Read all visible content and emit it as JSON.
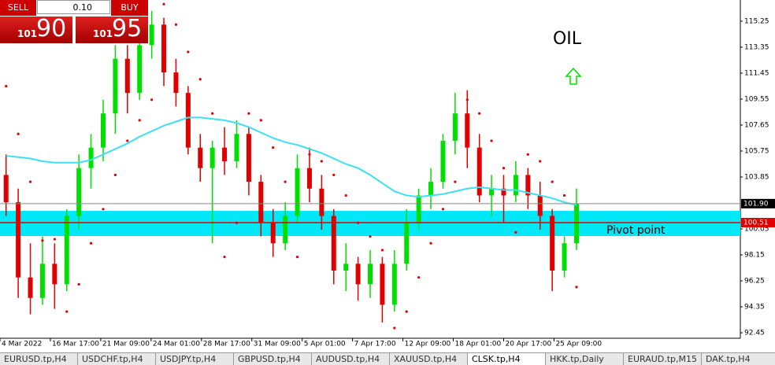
{
  "trade_panel": {
    "sell": "SELL",
    "buy": "BUY",
    "lot": "0.10",
    "bid_small": "101",
    "bid_big": "90",
    "ask_small": "101",
    "ask_big": "95"
  },
  "chart_data": {
    "type": "candlestick",
    "annotations": {
      "symbol": "OIL",
      "pivot": "Pivot point"
    },
    "x": [
      0.5,
      1.5,
      2.5,
      3.5,
      4.5,
      5.5,
      6.5,
      7.5,
      8.5,
      9.5,
      10.5,
      11.5,
      12.5,
      13.5,
      14.5,
      15.5,
      16.5,
      17.5,
      18.5,
      19.5,
      20.5,
      21.5,
      22.5,
      23.5,
      24.5,
      25.5,
      26.5,
      27.5,
      28.5,
      29.5,
      30.5,
      31.5,
      32.5,
      33.5,
      34.5,
      35.5,
      36.5,
      37.5,
      38.5,
      39.5,
      40.5,
      41.5,
      42.5,
      43.5,
      44.5,
      45.5,
      46.5,
      47.5
    ],
    "open": [
      104,
      102,
      96.5,
      95,
      97.5,
      96,
      101,
      104.5,
      106,
      108.5,
      112.5,
      110,
      113.5,
      115,
      111.5,
      110,
      106,
      104.5,
      106,
      105,
      107,
      103.5,
      100.5,
      99,
      101,
      104.5,
      103,
      101,
      97,
      97.5,
      96,
      97.5,
      94.5,
      97.5,
      100.5,
      102.5,
      103.5,
      106.5,
      108.5,
      106,
      102.5,
      103,
      102.5,
      104,
      102.5,
      101,
      97,
      99
    ],
    "high": [
      105.5,
      103,
      99,
      99.5,
      99,
      101.5,
      105.5,
      107,
      109.5,
      113.5,
      113.5,
      114,
      116,
      115.5,
      112.5,
      110.5,
      107,
      106.5,
      107.5,
      108,
      107.5,
      104,
      101.5,
      102,
      105.5,
      106,
      104,
      101.5,
      99,
      98,
      98.5,
      98,
      98.5,
      101.5,
      103,
      104.5,
      107,
      110,
      110.2,
      107,
      104,
      104,
      105,
      104.5,
      103.5,
      101.5,
      99.5,
      103
    ],
    "low": [
      101,
      95,
      93.8,
      94.5,
      94.2,
      95.5,
      100,
      103,
      105,
      107,
      108.5,
      109.5,
      112.5,
      110.5,
      109,
      105.5,
      103.5,
      99,
      104,
      104.5,
      102.5,
      99.5,
      98,
      98.5,
      100.5,
      102,
      100,
      96,
      95.5,
      94.8,
      95,
      93.2,
      94,
      97,
      100,
      101.5,
      103,
      105.5,
      104.5,
      102,
      101,
      100.5,
      102,
      101.5,
      100,
      95.5,
      96.5,
      98.5
    ],
    "close": [
      102,
      96.5,
      95,
      97.5,
      96,
      101,
      104.5,
      106,
      108.5,
      112.5,
      110,
      113.5,
      115,
      111.5,
      110,
      106,
      104.5,
      106,
      105,
      107,
      103.5,
      100.5,
      99,
      101,
      104.5,
      103,
      101,
      97,
      97.5,
      96,
      97.5,
      94.5,
      97.5,
      100.5,
      102.5,
      103.5,
      106.5,
      108.5,
      106,
      102.5,
      103,
      102.5,
      104,
      102.5,
      101,
      97,
      99,
      101.9
    ],
    "up_color": "#00e000",
    "down_color": "#e00000",
    "overlays": [
      {
        "kind": "line",
        "color": "#3de0f0",
        "values": [
          105.4,
          105.3,
          105.2,
          105.0,
          104.9,
          104.9,
          104.9,
          105.1,
          105.5,
          105.9,
          106.3,
          106.8,
          107.2,
          107.6,
          107.9,
          108.2,
          108.2,
          108.1,
          108.0,
          107.8,
          107.5,
          107.1,
          106.7,
          106.4,
          106.2,
          105.9,
          105.6,
          105.2,
          104.8,
          104.5,
          104.0,
          103.4,
          102.8,
          102.5,
          102.4,
          102.5,
          102.6,
          102.8,
          103.0,
          103.1,
          103.0,
          102.9,
          102.9,
          102.7,
          102.5,
          102.3,
          102.0,
          101.8
        ]
      },
      {
        "kind": "dots",
        "color": "#e00000",
        "values": [
          110.5,
          107,
          103.5,
          99.2,
          99.3,
          94,
          96,
          99,
          101.5,
          104,
          106.5,
          108,
          109.5,
          116.5,
          115,
          113,
          111,
          108.5,
          98,
          100.5,
          108.5,
          108,
          106,
          103.5,
          98,
          105.5,
          105,
          104,
          102.5,
          100.5,
          99.5,
          98.5,
          92.8,
          94,
          96.5,
          99,
          101.5,
          103.5,
          109.5,
          108.5,
          106.5,
          104.5,
          99.8,
          105.5,
          105,
          103.5,
          102.5,
          95.8
        ]
      }
    ],
    "levels": [
      {
        "value": 101.9,
        "label": "101.90",
        "color": "#888888",
        "label_bg": "#000000"
      },
      {
        "value": 100.51,
        "label": "100.51",
        "color": "#e00000",
        "label_bg": "#e00000"
      }
    ],
    "band": {
      "from": 99.53,
      "to": 101.37,
      "color": "#00e8f8"
    },
    "xlim": [
      0,
      61
    ],
    "ylim": [
      92.05,
      116.8
    ],
    "yticks": [
      92.45,
      94.35,
      96.25,
      98.15,
      100.05,
      103.85,
      105.75,
      107.65,
      109.55,
      111.45,
      113.35,
      115.25
    ],
    "xticks": [
      {
        "value": 0,
        "label": "4 Mar 2022"
      },
      {
        "value": 4.15,
        "label": "16 Mar 17:00"
      },
      {
        "value": 8.3,
        "label": "21 Mar 09:00"
      },
      {
        "value": 12.45,
        "label": "24 Mar 01:00"
      },
      {
        "value": 16.6,
        "label": "28 Mar 17:00"
      },
      {
        "value": 20.75,
        "label": "31 Mar 09:00"
      },
      {
        "value": 24.9,
        "label": "5 Apr 01:00"
      },
      {
        "value": 29.05,
        "label": "7 Apr 17:00"
      },
      {
        "value": 33.2,
        "label": "12 Apr 09:00"
      },
      {
        "value": 37.35,
        "label": "18 Apr 01:00"
      },
      {
        "value": 41.5,
        "label": "20 Apr 17:00"
      },
      {
        "value": 45.65,
        "label": "25 Apr 09:00"
      }
    ]
  },
  "tabs": [
    "EURUSD.tp,H4",
    "USDCHF.tp,H4",
    "USDJPY.tp,H4",
    "GBPUSD.tp,H4",
    "AUDUSD.tp,H4",
    "XAUUSD.tp,H4",
    "CLSK.tp,H4",
    "HKK.tp,Daily",
    "EURAUD.tp,M15",
    "DAK.tp,H4"
  ],
  "active_tab": 6
}
